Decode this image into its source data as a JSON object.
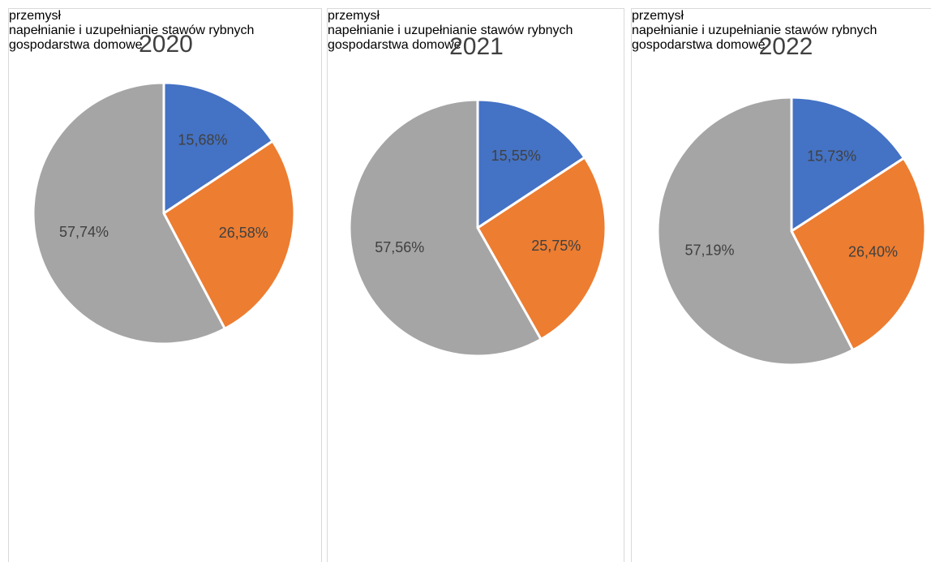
{
  "chart_data": [
    {
      "type": "pie",
      "title": "2020",
      "categories": [
        "przemysł",
        "napełnianie i uzupełnianie stawów rybnych",
        "gospodarstwa domowe"
      ],
      "values": [
        15.68,
        26.58,
        57.74
      ],
      "value_labels": [
        "15,68%",
        "26,58%",
        "57,74%"
      ],
      "colors": [
        "#4472c4",
        "#ed7d31",
        "#a5a5a5"
      ]
    },
    {
      "type": "pie",
      "title": "2021",
      "categories": [
        "przemysł",
        "napełnianie i uzupełnianie stawów rybnych",
        "gospodarstwa domowe"
      ],
      "values": [
        15.55,
        25.75,
        57.56
      ],
      "value_labels": [
        "15,55%",
        "25,75%",
        "57,56%"
      ],
      "colors": [
        "#4472c4",
        "#ed7d31",
        "#a5a5a5"
      ]
    },
    {
      "type": "pie",
      "title": "2022",
      "categories": [
        "przemysł",
        "napełnianie i uzupełnianie stawów rybnych",
        "gospodarstwa domowe"
      ],
      "values": [
        15.73,
        26.4,
        57.19
      ],
      "value_labels": [
        "15,73%",
        "26,40%",
        "57,19%"
      ],
      "colors": [
        "#4472c4",
        "#ed7d31",
        "#a5a5a5"
      ]
    }
  ]
}
